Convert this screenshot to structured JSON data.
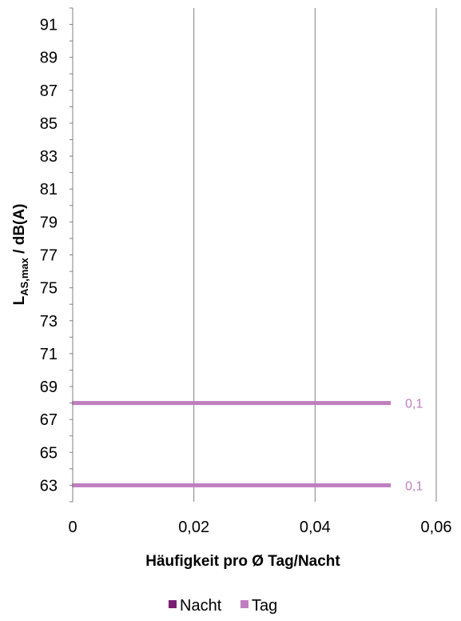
{
  "chart_data": {
    "type": "bar",
    "orientation": "horizontal",
    "title": "",
    "xlabel": "Häufigkeit pro Ø Tag/Nacht",
    "ylabel": {
      "main": "L",
      "sub": "AS,max",
      "suffix": " / dB(A)"
    },
    "x_ticks": [
      "0",
      "0,02",
      "0,04",
      "0,06"
    ],
    "x_tick_values": [
      0,
      0.02,
      0.04,
      0.06
    ],
    "xlim": [
      0,
      0.06
    ],
    "y_ticks": [
      "63",
      "65",
      "67",
      "69",
      "71",
      "73",
      "75",
      "77",
      "79",
      "81",
      "83",
      "85",
      "87",
      "89",
      "91"
    ],
    "ylim": [
      62,
      92
    ],
    "grid": "vertical",
    "legend_position": "bottom",
    "series": [
      {
        "name": "Nacht",
        "color": "#7a1f72",
        "points": []
      },
      {
        "name": "Tag",
        "color": "#bf7ebf",
        "points": [
          {
            "y": 68,
            "x": 0.0525,
            "label": "0,1"
          },
          {
            "y": 63,
            "x": 0.0525,
            "label": "0,1"
          }
        ]
      }
    ]
  }
}
